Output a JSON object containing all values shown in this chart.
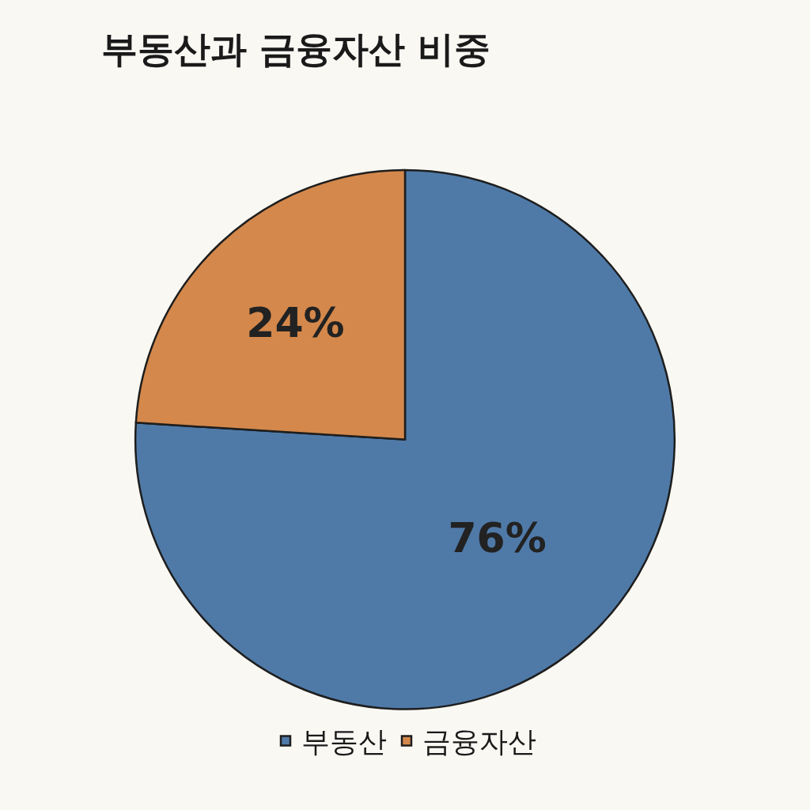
{
  "chart_data": {
    "type": "pie",
    "title": "부동산과 금융자산 비중",
    "categories": [
      "부동산",
      "금융자산"
    ],
    "values": [
      76,
      24
    ],
    "colors": [
      "#4f7aa8",
      "#d4884b"
    ],
    "value_labels": [
      "76%",
      "24%"
    ],
    "legend": "bottom"
  }
}
